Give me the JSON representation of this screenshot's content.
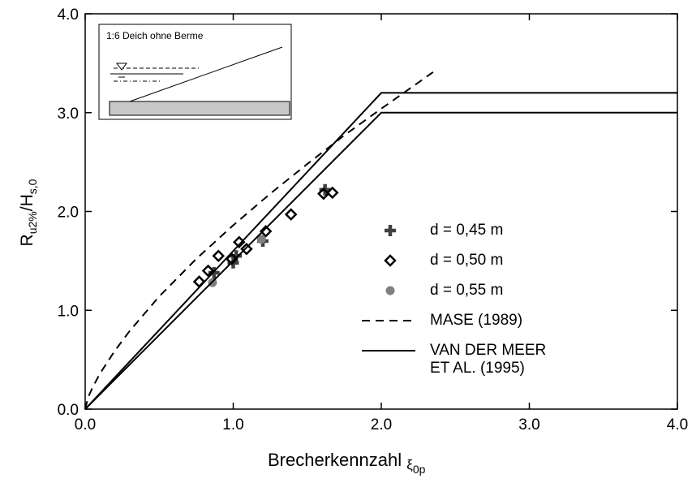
{
  "chart_data": {
    "type": "scatter",
    "inset_label": "1:6 Deich ohne Berme",
    "ylabel_parts": [
      "R",
      "u2%",
      "/H",
      "s,0"
    ],
    "xlabel_parts": [
      "Brecherkennzahl ",
      "ξ",
      "0p"
    ],
    "xlim": [
      0,
      4
    ],
    "ylim": [
      0,
      4
    ],
    "xticks": [
      {
        "value": 0,
        "label": "0.0"
      },
      {
        "value": 1,
        "label": "1.0"
      },
      {
        "value": 2,
        "label": "2.0"
      },
      {
        "value": 3,
        "label": "3.0"
      },
      {
        "value": 4,
        "label": "4.0"
      }
    ],
    "yticks": [
      {
        "value": 0,
        "label": "0.0"
      },
      {
        "value": 1,
        "label": "1.0"
      },
      {
        "value": 2,
        "label": "2.0"
      },
      {
        "value": 3,
        "label": "3.0"
      },
      {
        "value": 4,
        "label": "4.0"
      }
    ],
    "series": [
      {
        "name": "d = 0,45 m",
        "marker": "plus",
        "color": "#404040",
        "x": [
          0.87,
          1.0,
          1.02,
          1.2,
          1.62
        ],
        "values": [
          1.38,
          1.48,
          1.55,
          1.7,
          2.22
        ]
      },
      {
        "name": "d = 0,50 m",
        "marker": "diamond",
        "color": "#000000",
        "x": [
          0.77,
          0.83,
          0.9,
          0.99,
          1.04,
          1.09,
          1.22,
          1.39,
          1.61,
          1.67
        ],
        "values": [
          1.29,
          1.4,
          1.55,
          1.52,
          1.69,
          1.62,
          1.8,
          1.97,
          2.18,
          2.19
        ]
      },
      {
        "name": "d = 0,55 m",
        "marker": "dot",
        "color": "#808080",
        "x": [
          0.86,
          1.19
        ],
        "values": [
          1.28,
          1.72
        ]
      },
      {
        "name": "MASE (1989)",
        "marker": "line",
        "dash": true,
        "color": "#000000",
        "x": [
          0,
          0.02,
          0.05,
          0.1,
          0.2,
          0.3,
          0.5,
          0.75,
          1,
          1.25,
          1.5,
          1.75,
          2,
          2.35
        ],
        "values": [
          0,
          0.12,
          0.22,
          0.36,
          0.59,
          0.79,
          1.14,
          1.52,
          1.86,
          2.18,
          2.48,
          2.77,
          3.04,
          3.41
        ]
      },
      {
        "name": "VAN DER MEER\nET AL. (1995)",
        "marker": "line",
        "dash": false,
        "color": "#000000",
        "x": [
          0,
          2,
          4
        ],
        "values": [
          0,
          3.2,
          3.2
        ]
      },
      {
        "marker": "line",
        "dash": false,
        "color": "#000000",
        "x": [
          0,
          2,
          4
        ],
        "values": [
          0,
          3.0,
          3.0
        ]
      }
    ]
  }
}
